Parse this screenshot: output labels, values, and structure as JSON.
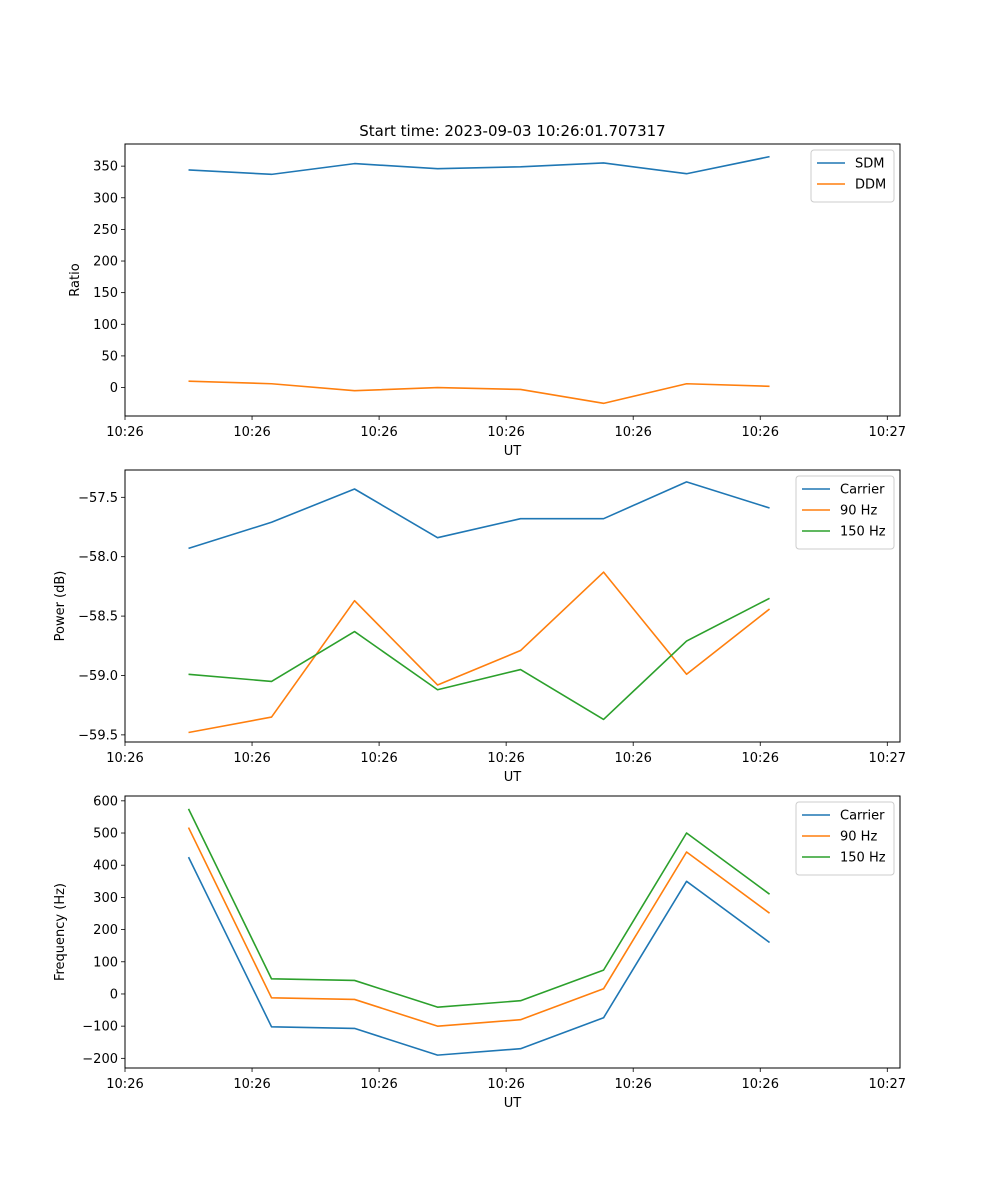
{
  "chart_data": [
    {
      "type": "line",
      "title": "Start time: 2023-09-03 10:26:01.707317",
      "xlabel": "UT",
      "ylabel": "Ratio",
      "xlim": [
        0,
        9.15
      ],
      "ylim": [
        -45,
        385
      ],
      "yticks": [
        0,
        50,
        100,
        150,
        200,
        250,
        300,
        350
      ],
      "yticklabels": [
        "0",
        "50",
        "100",
        "150",
        "200",
        "250",
        "300",
        "350"
      ],
      "xticks": [
        0,
        1.5,
        3,
        4.5,
        6,
        7.5,
        9
      ],
      "xticklabels": [
        "10:26",
        "10:26",
        "10:26",
        "10:26",
        "10:26",
        "10:26",
        "10:27"
      ],
      "x": [
        0.75,
        1.73,
        2.71,
        3.69,
        4.67,
        5.65,
        6.63,
        7.61
      ],
      "legend_position": "top-right",
      "series": [
        {
          "name": "SDM",
          "color": "#1f77b4",
          "values": [
            344,
            337,
            354,
            346,
            349,
            355,
            338,
            365
          ]
        },
        {
          "name": "DDM",
          "color": "#ff7f0e",
          "values": [
            10,
            6,
            -5,
            0,
            -3,
            -25,
            6,
            2
          ]
        }
      ]
    },
    {
      "type": "line",
      "title": "",
      "xlabel": "UT",
      "ylabel": "Power (dB)",
      "xlim": [
        0,
        9.15
      ],
      "ylim": [
        -59.56,
        -57.27
      ],
      "yticks": [
        -59.5,
        -59.0,
        -58.5,
        -58.0,
        -57.5
      ],
      "yticklabels": [
        "−59.5",
        "−59.0",
        "−58.5",
        "−58.0",
        "−57.5"
      ],
      "xticks": [
        0,
        1.5,
        3,
        4.5,
        6,
        7.5,
        9
      ],
      "xticklabels": [
        "10:26",
        "10:26",
        "10:26",
        "10:26",
        "10:26",
        "10:26",
        "10:27"
      ],
      "x": [
        0.75,
        1.73,
        2.71,
        3.69,
        4.67,
        5.65,
        6.63,
        7.61
      ],
      "legend_position": "top-right",
      "series": [
        {
          "name": "Carrier",
          "color": "#1f77b4",
          "values": [
            -57.93,
            -57.71,
            -57.43,
            -57.84,
            -57.68,
            -57.68,
            -57.37,
            -57.59
          ]
        },
        {
          "name": "90 Hz",
          "color": "#ff7f0e",
          "values": [
            -59.48,
            -59.35,
            -58.37,
            -59.08,
            -58.79,
            -58.13,
            -58.99,
            -58.44
          ]
        },
        {
          "name": "150 Hz",
          "color": "#2ca02c",
          "values": [
            -58.99,
            -59.05,
            -58.63,
            -59.12,
            -58.95,
            -59.37,
            -58.71,
            -58.35
          ]
        }
      ]
    },
    {
      "type": "line",
      "title": "",
      "xlabel": "UT",
      "ylabel": "Frequency (Hz)",
      "xlim": [
        0,
        9.15
      ],
      "ylim": [
        -230,
        615
      ],
      "yticks": [
        -200,
        -100,
        0,
        100,
        200,
        300,
        400,
        500,
        600
      ],
      "yticklabels": [
        "−200",
        "−100",
        "0",
        "100",
        "200",
        "300",
        "400",
        "500",
        "600"
      ],
      "xticks": [
        0,
        1.5,
        3,
        4.5,
        6,
        7.5,
        9
      ],
      "xticklabels": [
        "10:26",
        "10:26",
        "10:26",
        "10:26",
        "10:26",
        "10:26",
        "10:27"
      ],
      "x": [
        0.75,
        1.73,
        2.71,
        3.69,
        4.67,
        5.65,
        6.63,
        7.61
      ],
      "legend_position": "top-right",
      "series": [
        {
          "name": "Carrier",
          "color": "#1f77b4",
          "values": [
            425,
            -102,
            -107,
            -190,
            -170,
            -74,
            350,
            160
          ]
        },
        {
          "name": "90 Hz",
          "color": "#ff7f0e",
          "values": [
            517,
            -12,
            -17,
            -100,
            -80,
            16,
            441,
            251
          ]
        },
        {
          "name": "150 Hz",
          "color": "#2ca02c",
          "values": [
            575,
            47,
            42,
            -41,
            -21,
            74,
            500,
            310
          ]
        }
      ]
    }
  ]
}
